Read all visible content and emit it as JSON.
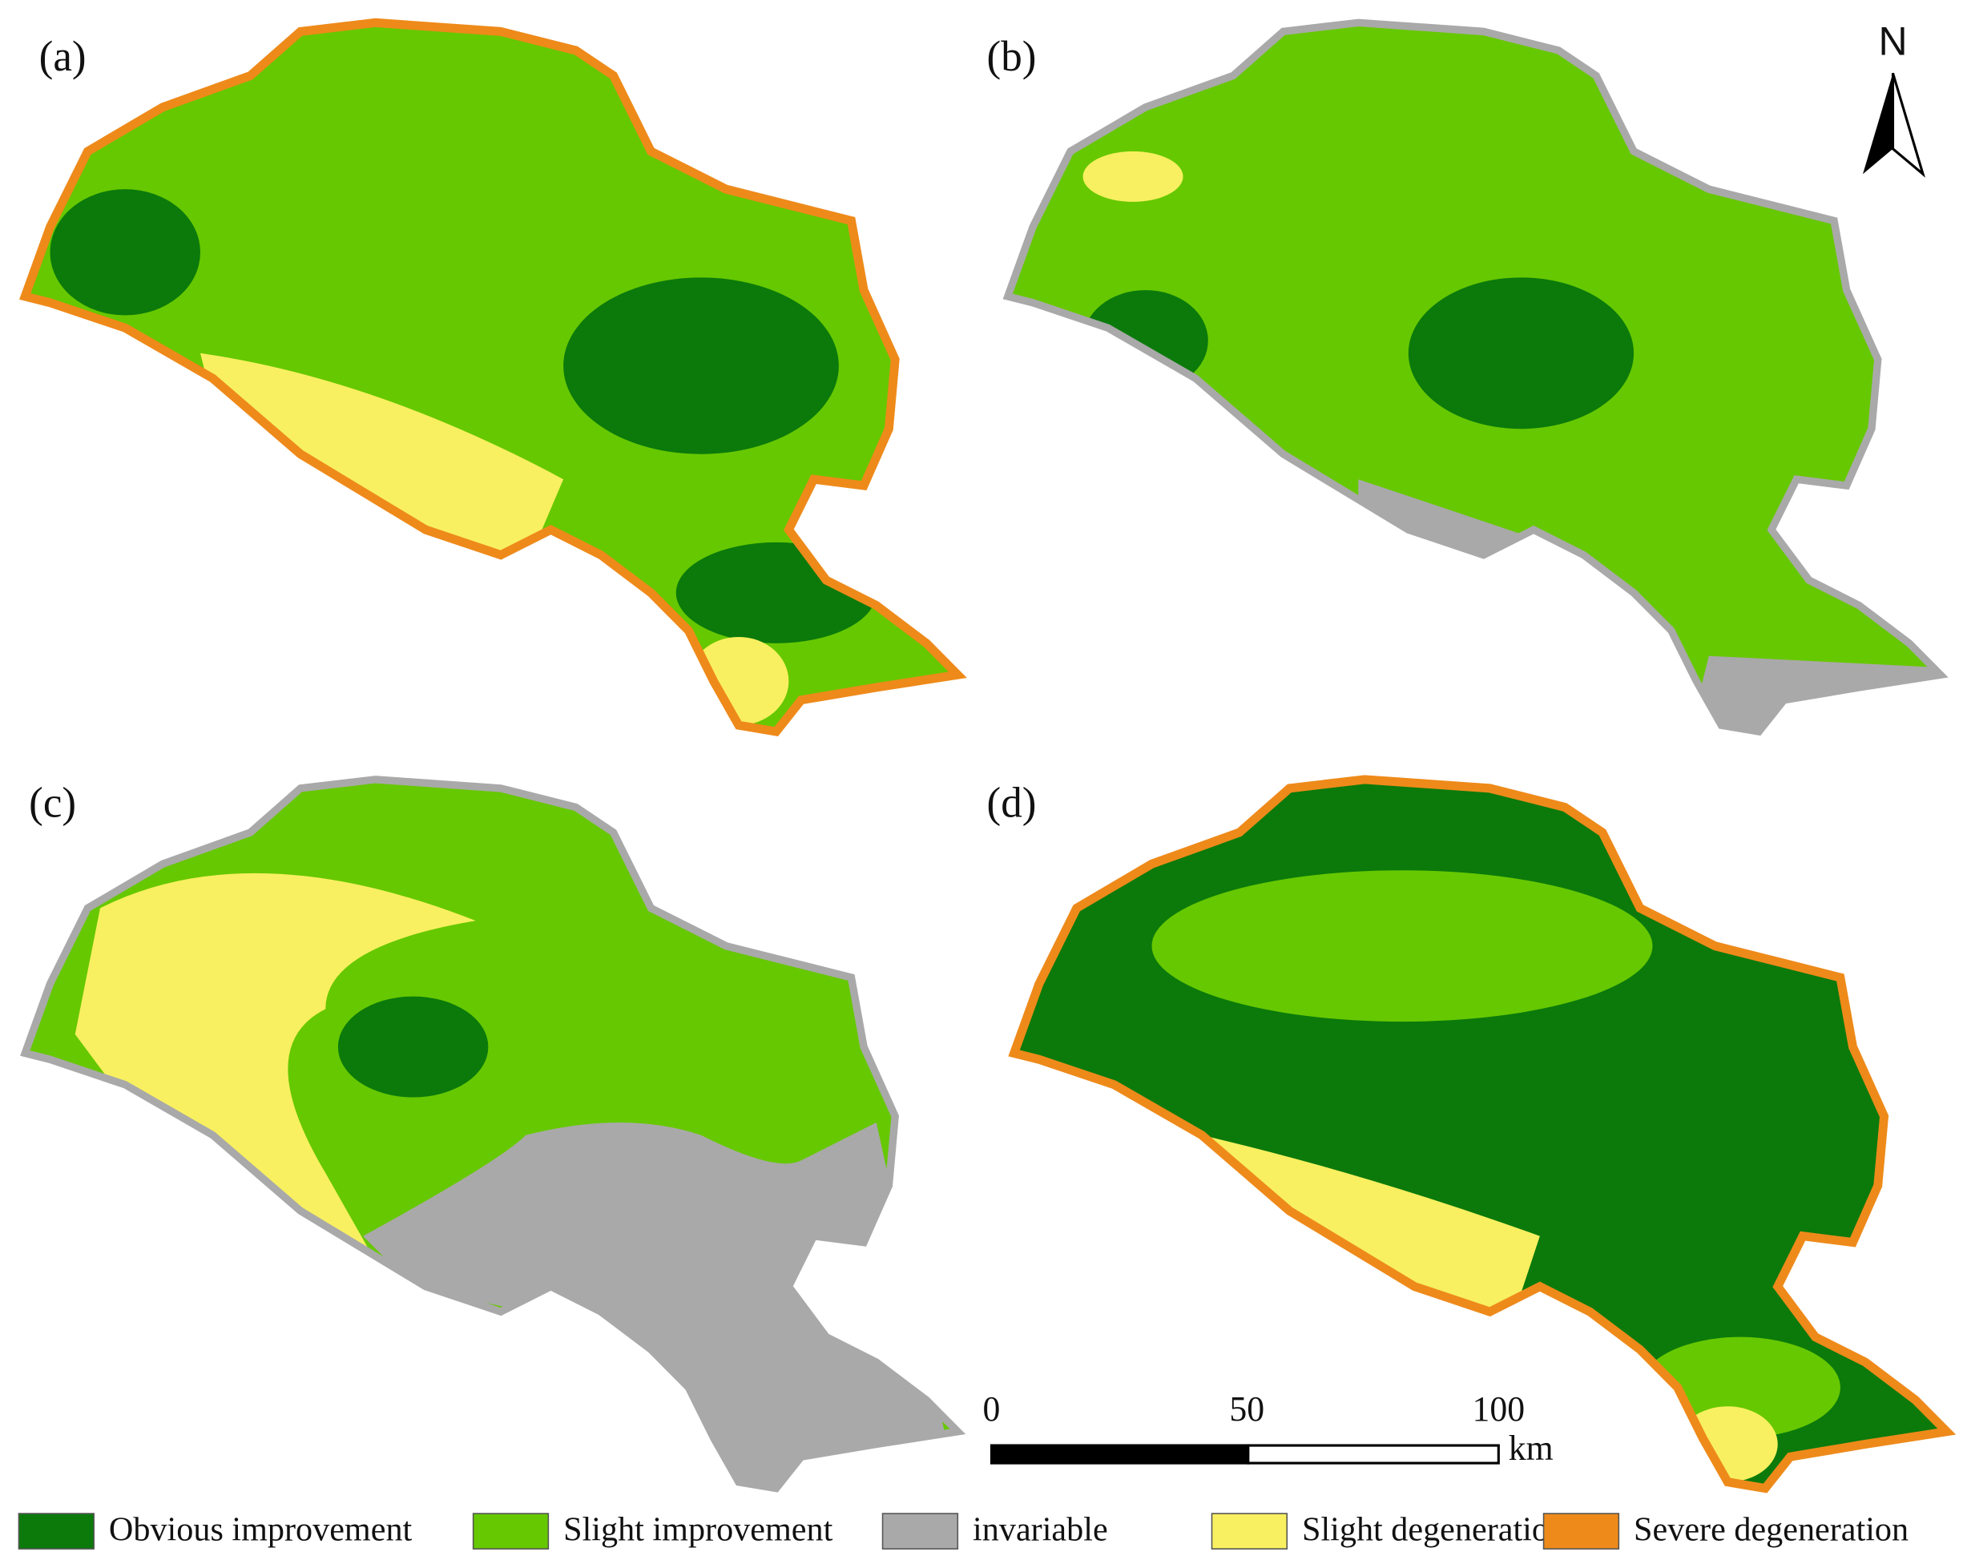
{
  "panels": [
    {
      "label": "(a)"
    },
    {
      "label": "(b)"
    },
    {
      "label": "(c)"
    },
    {
      "label": "(d)"
    }
  ],
  "north_arrow": {
    "label": "N"
  },
  "scale_bar": {
    "ticks": [
      "0",
      "50",
      "100"
    ],
    "unit": "km"
  },
  "legend": {
    "items": [
      {
        "label": "Obvious improvement",
        "color": "#0b7a0b"
      },
      {
        "label": "Slight improvement",
        "color": "#66c800"
      },
      {
        "label": "invariable",
        "color": "#a9a9a9"
      },
      {
        "label": "Slight degeneration",
        "color": "#f8f060"
      },
      {
        "label": "Severe degeneration",
        "color": "#ee8a1a"
      }
    ]
  }
}
